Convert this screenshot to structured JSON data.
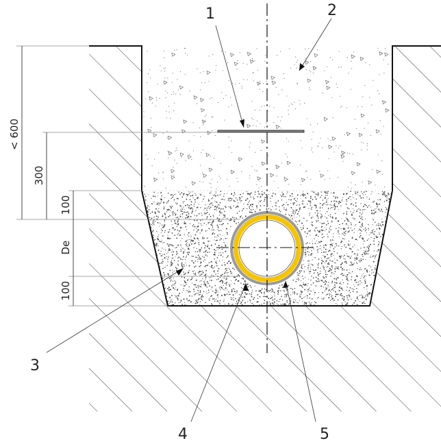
{
  "callouts": {
    "c1": "1",
    "c2": "2",
    "c3": "3",
    "c4": "4",
    "c5": "5"
  },
  "dimensions": {
    "max_depth": "< 600",
    "tape_depth": "300",
    "cover_above": "100",
    "diameter": "De",
    "bedding_below": "100"
  },
  "colors": {
    "line": "#111111",
    "hatch": "#222222",
    "pipe": "#f5c400",
    "sleeve": "#9a9a9a",
    "sand": "#444444"
  }
}
